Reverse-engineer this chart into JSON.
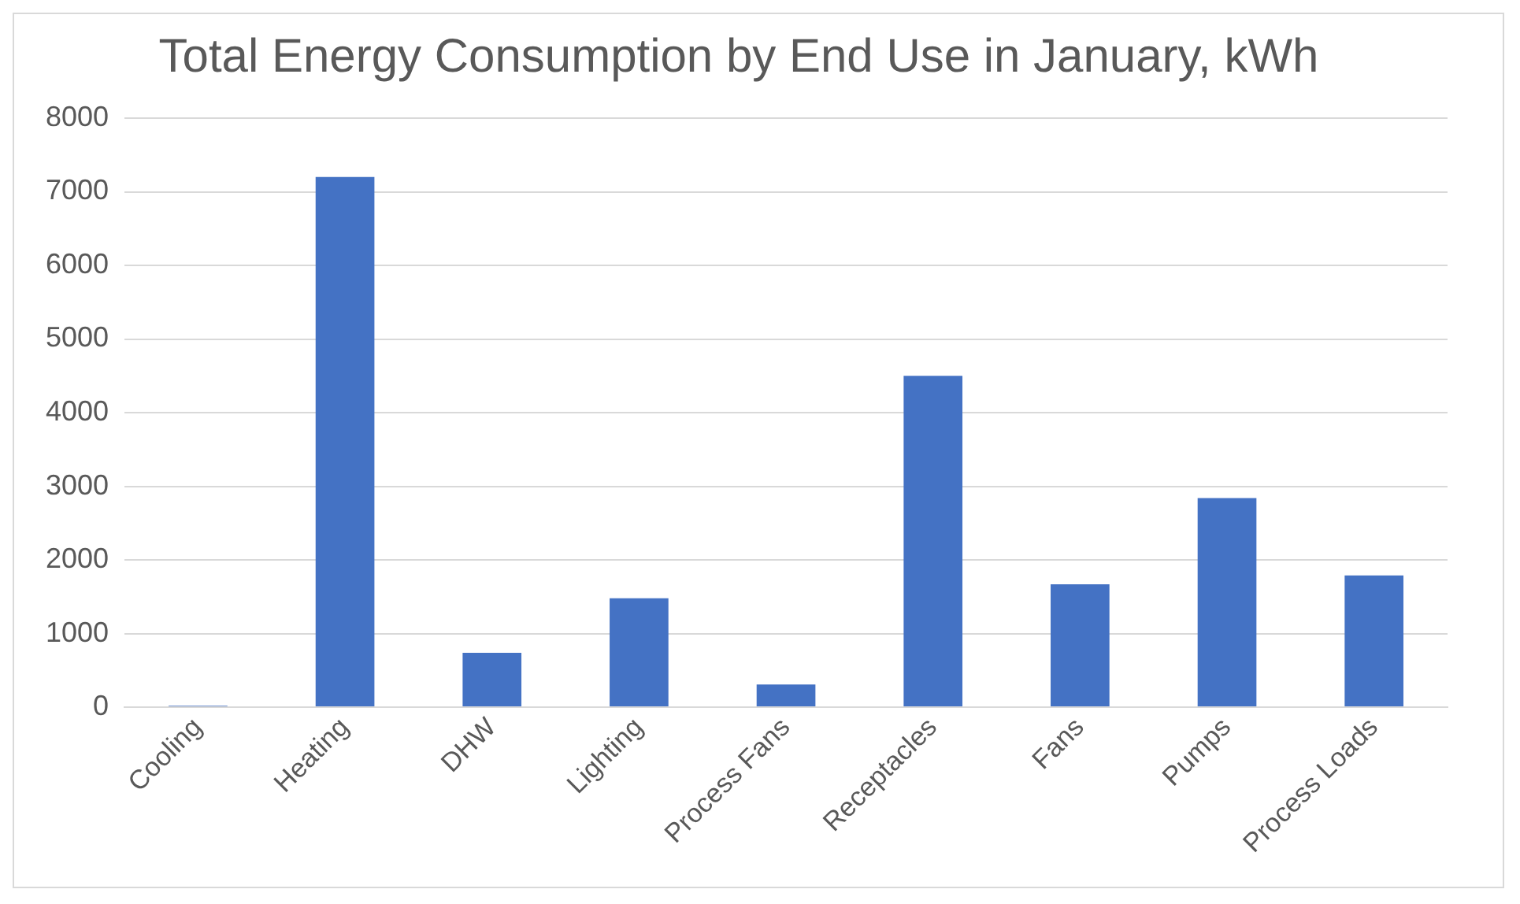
{
  "chart_data": {
    "type": "bar",
    "title": "Total Energy Consumption by End Use in January, kWh",
    "categories": [
      "Cooling",
      "Heating",
      "DHW",
      "Lighting",
      "Process Fans",
      "Receptacles",
      "Fans",
      "Pumps",
      "Process Loads"
    ],
    "values": [
      20,
      7200,
      740,
      1480,
      310,
      4500,
      1670,
      2840,
      1790
    ],
    "color": "#4472c4",
    "ylim": [
      0,
      8000
    ],
    "yticks": [
      0,
      1000,
      2000,
      3000,
      4000,
      5000,
      6000,
      7000,
      8000
    ],
    "grid": "y",
    "legend": false
  }
}
